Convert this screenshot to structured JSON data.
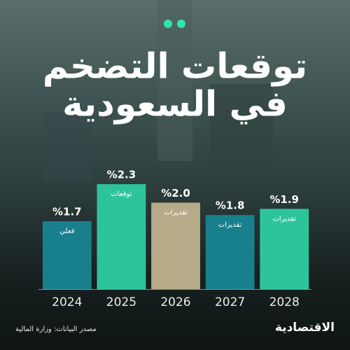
{
  "chart_data": {
    "type": "bar",
    "title": "توقعات التضخم",
    "subtitle": "في السعودية",
    "categories": [
      "2024",
      "2025",
      "2026",
      "2027",
      "2028"
    ],
    "values": [
      1.7,
      2.3,
      2.0,
      1.8,
      1.9
    ],
    "value_labels": [
      "%1.7",
      "%2.3",
      "%2.0",
      "%1.8",
      "%1.9"
    ],
    "bar_notes": [
      "فعلي",
      "توقعات",
      "تقديرات",
      "تقديرات",
      "تقديرات"
    ],
    "colors": [
      "#17808c",
      "#2ec49b",
      "#b7aa88",
      "#17808c",
      "#2ec49b"
    ],
    "ylim": [
      0.6,
      2.8
    ],
    "source": "مصدر البيانات: وزارة المالية",
    "brand": "الاقتصادية"
  }
}
